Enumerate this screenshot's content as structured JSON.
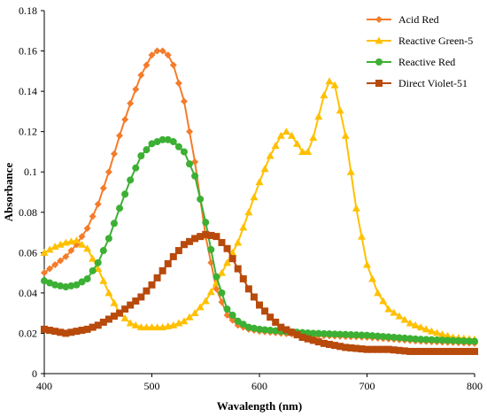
{
  "chart_data": {
    "type": "line",
    "title": "",
    "xlabel": "Wavalength (nm)",
    "ylabel": "Absorbance",
    "xlim": [
      400,
      800
    ],
    "ylim": [
      0,
      0.18
    ],
    "xticks": [
      "400",
      "500",
      "600",
      "700",
      "800"
    ],
    "yticks": [
      "0",
      "0.02",
      "0.04",
      "0.06",
      "0.08",
      "0.1",
      "0.12",
      "0.14",
      "0.16",
      "0.18"
    ],
    "grid": false,
    "legend_position": "top-right",
    "series": [
      {
        "name": "Acid Red",
        "color": "#f47c2a",
        "marker": "diamond",
        "x": [
          400,
          410,
          420,
          430,
          440,
          450,
          460,
          470,
          480,
          490,
          500,
          505,
          510,
          515,
          520,
          530,
          540,
          550,
          560,
          570,
          580,
          590,
          600,
          620,
          650,
          700,
          750,
          800
        ],
        "y": [
          0.05,
          0.054,
          0.058,
          0.064,
          0.072,
          0.084,
          0.1,
          0.118,
          0.134,
          0.148,
          0.158,
          0.16,
          0.16,
          0.158,
          0.153,
          0.135,
          0.105,
          0.068,
          0.042,
          0.029,
          0.024,
          0.022,
          0.021,
          0.02,
          0.019,
          0.018,
          0.016,
          0.015
        ]
      },
      {
        "name": "Reactive Green-5",
        "color": "#ffc000",
        "marker": "triangle",
        "x": [
          400,
          410,
          420,
          430,
          440,
          450,
          460,
          470,
          480,
          490,
          500,
          510,
          520,
          530,
          540,
          550,
          560,
          570,
          580,
          590,
          600,
          610,
          620,
          625,
          630,
          640,
          645,
          650,
          660,
          665,
          670,
          680,
          690,
          700,
          710,
          720,
          740,
          760,
          780,
          800
        ],
        "y": [
          0.06,
          0.063,
          0.065,
          0.066,
          0.062,
          0.052,
          0.04,
          0.03,
          0.025,
          0.023,
          0.023,
          0.023,
          0.024,
          0.026,
          0.03,
          0.036,
          0.045,
          0.055,
          0.065,
          0.08,
          0.095,
          0.108,
          0.118,
          0.12,
          0.118,
          0.11,
          0.11,
          0.117,
          0.138,
          0.145,
          0.143,
          0.118,
          0.082,
          0.054,
          0.04,
          0.032,
          0.025,
          0.021,
          0.018,
          0.017
        ]
      },
      {
        "name": "Reactive Red",
        "color": "#3cb034",
        "marker": "circle",
        "x": [
          400,
          410,
          420,
          430,
          440,
          450,
          460,
          470,
          480,
          490,
          500,
          510,
          515,
          520,
          530,
          540,
          550,
          560,
          570,
          580,
          590,
          600,
          620,
          650,
          700,
          750,
          800
        ],
        "y": [
          0.046,
          0.044,
          0.043,
          0.044,
          0.047,
          0.055,
          0.067,
          0.082,
          0.096,
          0.108,
          0.114,
          0.116,
          0.116,
          0.115,
          0.11,
          0.098,
          0.075,
          0.048,
          0.032,
          0.026,
          0.023,
          0.022,
          0.021,
          0.02,
          0.019,
          0.017,
          0.016
        ]
      },
      {
        "name": "Direct Violet-51",
        "color": "#b84a0c",
        "marker": "square",
        "x": [
          400,
          410,
          420,
          430,
          440,
          450,
          460,
          470,
          480,
          490,
          500,
          510,
          520,
          530,
          540,
          550,
          560,
          570,
          580,
          590,
          600,
          610,
          620,
          640,
          660,
          680,
          700,
          720,
          740,
          760,
          780,
          800
        ],
        "y": [
          0.022,
          0.021,
          0.02,
          0.021,
          0.022,
          0.024,
          0.027,
          0.03,
          0.034,
          0.038,
          0.044,
          0.051,
          0.058,
          0.064,
          0.067,
          0.069,
          0.068,
          0.062,
          0.052,
          0.042,
          0.034,
          0.028,
          0.023,
          0.018,
          0.015,
          0.013,
          0.012,
          0.012,
          0.011,
          0.011,
          0.011,
          0.011
        ]
      }
    ]
  }
}
